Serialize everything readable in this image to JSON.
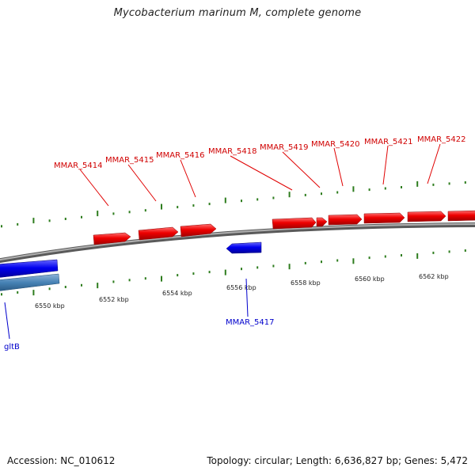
{
  "title": "Mycobacterium marinum M, complete genome",
  "footer": {
    "accession": "Accession: NC_010612",
    "summary": "Topology: circular; Length: 6,636,827 bp; Genes: 5,472"
  },
  "colors": {
    "forward_gene": "#ff0000",
    "reverse_gene": "#0000ff",
    "rna_or_other": "#4682b4",
    "ticks": "#2e7d1e",
    "backbone": "#8a8a8a"
  },
  "ticks": [
    {
      "label": "6550 kbp"
    },
    {
      "label": "6552 kbp"
    },
    {
      "label": "6554 kbp"
    },
    {
      "label": "6556 kbp"
    },
    {
      "label": "6558 kbp"
    },
    {
      "label": "6560 kbp"
    },
    {
      "label": "6562 kbp"
    }
  ],
  "forward_genes": [
    {
      "label": "MMAR_5414"
    },
    {
      "label": "MMAR_5415"
    },
    {
      "label": "MMAR_5416"
    },
    {
      "label": "MMAR_5418"
    },
    {
      "label": "MMAR_5419"
    },
    {
      "label": "MMAR_5420"
    },
    {
      "label": "MMAR_5421"
    },
    {
      "label": "MMAR_5422"
    }
  ],
  "reverse_genes": [
    {
      "label": "MMAR_5417"
    },
    {
      "label": "gltB"
    }
  ]
}
